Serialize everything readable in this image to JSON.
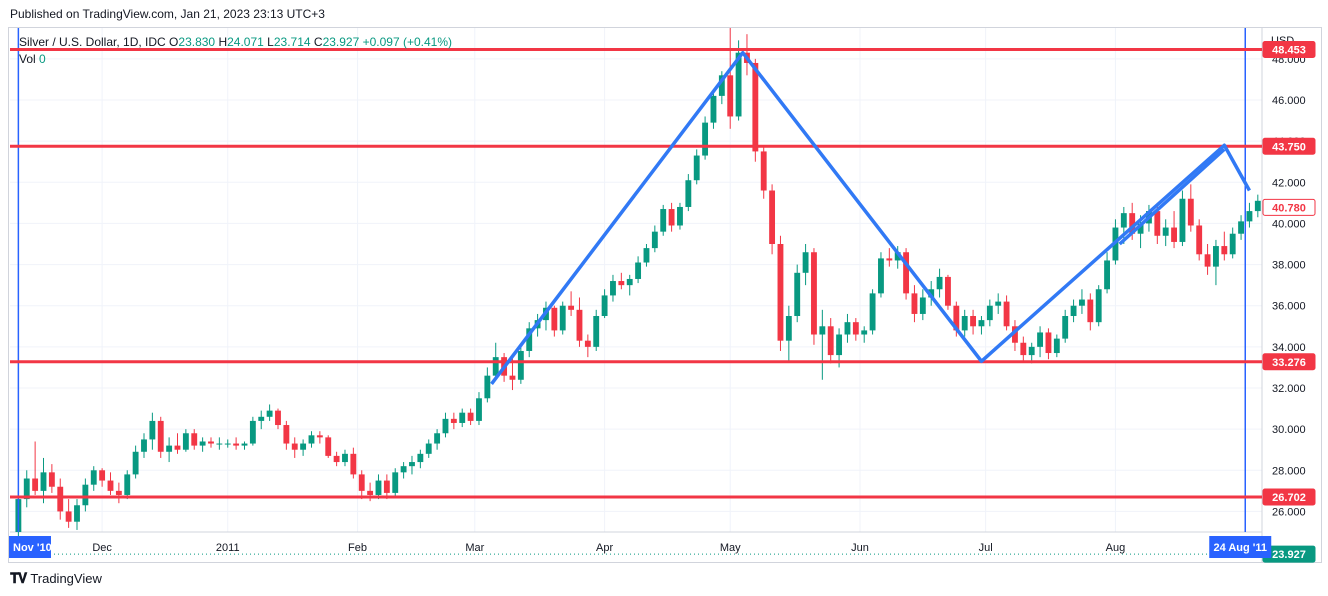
{
  "header": {
    "published": "Published on TradingView.com, Jan 21, 2023 23:13 UTC+3"
  },
  "legend": {
    "symbol": "Silver / U.S. Dollar, 1D, IDC",
    "o_label": "O",
    "o_value": "23.830",
    "h_label": "H",
    "h_value": "24.071",
    "l_label": "L",
    "l_value": "23.714",
    "c_label": "C",
    "c_value": "23.927",
    "change": "+0.097 (+0.41%)",
    "vol_label": "Vol",
    "vol_value": "0"
  },
  "footer": {
    "logo_text": "TradingView"
  },
  "colors": {
    "up": "#089981",
    "down": "#f23645",
    "hline": "#f23645",
    "pattern": "#3179f5",
    "vline": "#2962ff",
    "grid": "#f0f3fa",
    "axis_text": "#131722"
  },
  "chart_data": {
    "type": "candlestick",
    "currency_label": "USD",
    "y_axis": {
      "min": 25,
      "max": 49.5,
      "ticks": [
        "26.000",
        "28.000",
        "30.000",
        "32.000",
        "34.000",
        "36.000",
        "38.000",
        "40.000",
        "42.000",
        "44.000",
        "46.000",
        "48.000"
      ]
    },
    "x_axis": {
      "labels": [
        {
          "text": "Dec",
          "day": 20
        },
        {
          "text": "2011",
          "day": 50
        },
        {
          "text": "Feb",
          "day": 81
        },
        {
          "text": "Mar",
          "day": 109
        },
        {
          "text": "Apr",
          "day": 140
        },
        {
          "text": "May",
          "day": 170
        },
        {
          "text": "Jun",
          "day": 201
        },
        {
          "text": "Jul",
          "day": 231
        },
        {
          "text": "Aug",
          "day": 262
        }
      ],
      "range_days": [
        -2,
        297
      ],
      "range_start_label": "Nov '10",
      "range_end_label": "24 Aug '11",
      "range_start_day": 0,
      "range_end_day": 293
    },
    "horizontal_levels": [
      {
        "value": 48.453,
        "label": "48.453"
      },
      {
        "value": 43.75,
        "label": "43.750"
      },
      {
        "value": 33.276,
        "label": "33.276"
      },
      {
        "value": 26.702,
        "label": "26.702"
      }
    ],
    "current_price": {
      "value": 40.78,
      "label": "40.780"
    },
    "last_close": {
      "value": 23.927,
      "label": "23.927"
    },
    "pattern_line": [
      {
        "day": 113,
        "price": 32.2
      },
      {
        "day": 173,
        "price": 48.3
      },
      {
        "day": 230,
        "price": 33.3
      },
      {
        "day": 288,
        "price": 43.8
      },
      {
        "day": 294,
        "price": 41.6
      }
    ],
    "second_line": [
      {
        "day": 263,
        "price": 39.0
      },
      {
        "day": 288,
        "price": 43.6
      }
    ],
    "candles": [
      {
        "day": 0,
        "o": 25.0,
        "h": 27.0,
        "l": 24.6,
        "c": 26.6
      },
      {
        "day": 2,
        "o": 26.6,
        "h": 28.0,
        "l": 26.2,
        "c": 27.6
      },
      {
        "day": 4,
        "o": 27.6,
        "h": 29.4,
        "l": 26.8,
        "c": 27.0
      },
      {
        "day": 6,
        "o": 27.0,
        "h": 28.6,
        "l": 26.4,
        "c": 27.9
      },
      {
        "day": 8,
        "o": 27.9,
        "h": 28.3,
        "l": 26.9,
        "c": 27.2
      },
      {
        "day": 10,
        "o": 27.2,
        "h": 27.6,
        "l": 25.6,
        "c": 26.0
      },
      {
        "day": 12,
        "o": 26.0,
        "h": 26.6,
        "l": 25.2,
        "c": 25.5
      },
      {
        "day": 14,
        "o": 25.5,
        "h": 26.6,
        "l": 25.1,
        "c": 26.3
      },
      {
        "day": 16,
        "o": 26.3,
        "h": 27.6,
        "l": 26.0,
        "c": 27.3
      },
      {
        "day": 18,
        "o": 27.3,
        "h": 28.2,
        "l": 27.0,
        "c": 28.0
      },
      {
        "day": 20,
        "o": 28.0,
        "h": 28.1,
        "l": 27.2,
        "c": 27.5
      },
      {
        "day": 22,
        "o": 27.5,
        "h": 27.9,
        "l": 26.8,
        "c": 27.0
      },
      {
        "day": 24,
        "o": 27.0,
        "h": 27.4,
        "l": 26.4,
        "c": 26.8
      },
      {
        "day": 26,
        "o": 26.8,
        "h": 28.0,
        "l": 26.6,
        "c": 27.8
      },
      {
        "day": 28,
        "o": 27.8,
        "h": 29.2,
        "l": 27.6,
        "c": 28.9
      },
      {
        "day": 30,
        "o": 28.9,
        "h": 29.8,
        "l": 28.6,
        "c": 29.5
      },
      {
        "day": 32,
        "o": 29.5,
        "h": 30.8,
        "l": 29.0,
        "c": 30.4
      },
      {
        "day": 34,
        "o": 30.4,
        "h": 30.6,
        "l": 28.6,
        "c": 28.9
      },
      {
        "day": 36,
        "o": 28.9,
        "h": 29.6,
        "l": 28.4,
        "c": 29.2
      },
      {
        "day": 38,
        "o": 29.2,
        "h": 29.8,
        "l": 28.8,
        "c": 29.0
      },
      {
        "day": 40,
        "o": 29.0,
        "h": 30.0,
        "l": 28.9,
        "c": 29.8
      },
      {
        "day": 42,
        "o": 29.8,
        "h": 30.0,
        "l": 29.0,
        "c": 29.2
      },
      {
        "day": 44,
        "o": 29.2,
        "h": 29.6,
        "l": 28.9,
        "c": 29.4
      },
      {
        "day": 46,
        "o": 29.4,
        "h": 29.6,
        "l": 29.1,
        "c": 29.3
      },
      {
        "day": 48,
        "o": 29.3,
        "h": 29.6,
        "l": 29.0,
        "c": 29.3
      },
      {
        "day": 50,
        "o": 29.3,
        "h": 29.5,
        "l": 29.1,
        "c": 29.3
      },
      {
        "day": 52,
        "o": 29.3,
        "h": 29.6,
        "l": 29.0,
        "c": 29.2
      },
      {
        "day": 54,
        "o": 29.2,
        "h": 29.4,
        "l": 29.0,
        "c": 29.3
      },
      {
        "day": 56,
        "o": 29.3,
        "h": 30.6,
        "l": 29.2,
        "c": 30.4
      },
      {
        "day": 58,
        "o": 30.4,
        "h": 30.9,
        "l": 30.0,
        "c": 30.6
      },
      {
        "day": 60,
        "o": 30.6,
        "h": 31.2,
        "l": 30.4,
        "c": 30.9
      },
      {
        "day": 62,
        "o": 30.9,
        "h": 31.0,
        "l": 30.0,
        "c": 30.2
      },
      {
        "day": 64,
        "o": 30.2,
        "h": 30.4,
        "l": 29.0,
        "c": 29.3
      },
      {
        "day": 66,
        "o": 29.3,
        "h": 29.6,
        "l": 28.6,
        "c": 29.0
      },
      {
        "day": 68,
        "o": 29.0,
        "h": 29.5,
        "l": 28.7,
        "c": 29.3
      },
      {
        "day": 70,
        "o": 29.3,
        "h": 29.9,
        "l": 29.1,
        "c": 29.7
      },
      {
        "day": 72,
        "o": 29.7,
        "h": 29.9,
        "l": 29.3,
        "c": 29.6
      },
      {
        "day": 74,
        "o": 29.6,
        "h": 29.7,
        "l": 28.6,
        "c": 28.7
      },
      {
        "day": 76,
        "o": 28.7,
        "h": 28.9,
        "l": 28.2,
        "c": 28.4
      },
      {
        "day": 78,
        "o": 28.4,
        "h": 29.0,
        "l": 28.2,
        "c": 28.8
      },
      {
        "day": 80,
        "o": 28.8,
        "h": 29.1,
        "l": 27.6,
        "c": 27.8
      },
      {
        "day": 82,
        "o": 27.8,
        "h": 28.0,
        "l": 26.6,
        "c": 27.0
      },
      {
        "day": 84,
        "o": 27.0,
        "h": 27.4,
        "l": 26.5,
        "c": 26.8
      },
      {
        "day": 86,
        "o": 26.8,
        "h": 27.8,
        "l": 26.6,
        "c": 27.5
      },
      {
        "day": 88,
        "o": 27.5,
        "h": 27.8,
        "l": 26.6,
        "c": 26.9
      },
      {
        "day": 90,
        "o": 26.9,
        "h": 28.1,
        "l": 26.7,
        "c": 27.9
      },
      {
        "day": 92,
        "o": 27.9,
        "h": 28.4,
        "l": 27.6,
        "c": 28.2
      },
      {
        "day": 94,
        "o": 28.2,
        "h": 28.7,
        "l": 27.8,
        "c": 28.4
      },
      {
        "day": 96,
        "o": 28.4,
        "h": 29.0,
        "l": 28.1,
        "c": 28.8
      },
      {
        "day": 98,
        "o": 28.8,
        "h": 29.5,
        "l": 28.6,
        "c": 29.3
      },
      {
        "day": 100,
        "o": 29.3,
        "h": 30.0,
        "l": 29.0,
        "c": 29.8
      },
      {
        "day": 102,
        "o": 29.8,
        "h": 30.8,
        "l": 29.6,
        "c": 30.5
      },
      {
        "day": 104,
        "o": 30.5,
        "h": 30.8,
        "l": 30.0,
        "c": 30.3
      },
      {
        "day": 106,
        "o": 30.3,
        "h": 31.0,
        "l": 30.1,
        "c": 30.8
      },
      {
        "day": 108,
        "o": 30.8,
        "h": 31.0,
        "l": 30.2,
        "c": 30.4
      },
      {
        "day": 110,
        "o": 30.4,
        "h": 31.8,
        "l": 30.2,
        "c": 31.5
      },
      {
        "day": 112,
        "o": 31.5,
        "h": 33.0,
        "l": 31.3,
        "c": 32.6
      },
      {
        "day": 114,
        "o": 32.6,
        "h": 34.2,
        "l": 32.4,
        "c": 33.5
      },
      {
        "day": 116,
        "o": 33.5,
        "h": 33.7,
        "l": 32.3,
        "c": 32.6
      },
      {
        "day": 118,
        "o": 32.6,
        "h": 33.6,
        "l": 31.9,
        "c": 32.4
      },
      {
        "day": 120,
        "o": 32.4,
        "h": 34.0,
        "l": 32.2,
        "c": 33.8
      },
      {
        "day": 122,
        "o": 33.8,
        "h": 35.2,
        "l": 33.5,
        "c": 34.9
      },
      {
        "day": 124,
        "o": 34.9,
        "h": 35.6,
        "l": 34.5,
        "c": 35.3
      },
      {
        "day": 126,
        "o": 35.3,
        "h": 36.2,
        "l": 34.8,
        "c": 35.9
      },
      {
        "day": 128,
        "o": 35.9,
        "h": 36.0,
        "l": 34.5,
        "c": 34.8
      },
      {
        "day": 130,
        "o": 34.8,
        "h": 36.2,
        "l": 34.6,
        "c": 36.0
      },
      {
        "day": 132,
        "o": 36.0,
        "h": 36.7,
        "l": 35.5,
        "c": 35.8
      },
      {
        "day": 134,
        "o": 35.8,
        "h": 36.4,
        "l": 34.0,
        "c": 34.3
      },
      {
        "day": 136,
        "o": 34.3,
        "h": 34.6,
        "l": 33.5,
        "c": 34.0
      },
      {
        "day": 138,
        "o": 34.0,
        "h": 35.8,
        "l": 33.8,
        "c": 35.5
      },
      {
        "day": 140,
        "o": 35.5,
        "h": 36.8,
        "l": 35.4,
        "c": 36.5
      },
      {
        "day": 142,
        "o": 36.5,
        "h": 37.5,
        "l": 36.2,
        "c": 37.2
      },
      {
        "day": 144,
        "o": 37.2,
        "h": 37.6,
        "l": 36.8,
        "c": 37.0
      },
      {
        "day": 146,
        "o": 37.0,
        "h": 37.5,
        "l": 36.5,
        "c": 37.3
      },
      {
        "day": 148,
        "o": 37.3,
        "h": 38.4,
        "l": 37.1,
        "c": 38.1
      },
      {
        "day": 150,
        "o": 38.1,
        "h": 39.0,
        "l": 37.9,
        "c": 38.8
      },
      {
        "day": 152,
        "o": 38.8,
        "h": 39.9,
        "l": 38.6,
        "c": 39.6
      },
      {
        "day": 154,
        "o": 39.6,
        "h": 40.9,
        "l": 39.4,
        "c": 40.7
      },
      {
        "day": 156,
        "o": 40.7,
        "h": 41.0,
        "l": 39.6,
        "c": 39.9
      },
      {
        "day": 158,
        "o": 39.9,
        "h": 41.0,
        "l": 39.7,
        "c": 40.8
      },
      {
        "day": 160,
        "o": 40.8,
        "h": 42.4,
        "l": 40.6,
        "c": 42.1
      },
      {
        "day": 162,
        "o": 42.1,
        "h": 43.6,
        "l": 41.9,
        "c": 43.3
      },
      {
        "day": 164,
        "o": 43.3,
        "h": 45.2,
        "l": 43.1,
        "c": 44.9
      },
      {
        "day": 166,
        "o": 44.9,
        "h": 46.5,
        "l": 44.6,
        "c": 46.2
      },
      {
        "day": 168,
        "o": 46.2,
        "h": 47.4,
        "l": 45.8,
        "c": 47.2
      },
      {
        "day": 170,
        "o": 47.2,
        "h": 49.5,
        "l": 44.6,
        "c": 45.2
      },
      {
        "day": 172,
        "o": 45.2,
        "h": 48.9,
        "l": 45.0,
        "c": 48.3
      },
      {
        "day": 174,
        "o": 48.3,
        "h": 49.2,
        "l": 47.2,
        "c": 47.8
      },
      {
        "day": 176,
        "o": 47.8,
        "h": 48.0,
        "l": 43.0,
        "c": 43.5
      },
      {
        "day": 178,
        "o": 43.5,
        "h": 43.8,
        "l": 41.2,
        "c": 41.6
      },
      {
        "day": 180,
        "o": 41.6,
        "h": 41.9,
        "l": 38.5,
        "c": 39.0
      },
      {
        "day": 182,
        "o": 39.0,
        "h": 39.4,
        "l": 33.8,
        "c": 34.3
      },
      {
        "day": 184,
        "o": 34.3,
        "h": 36.0,
        "l": 33.3,
        "c": 35.5
      },
      {
        "day": 186,
        "o": 35.5,
        "h": 38.0,
        "l": 35.2,
        "c": 37.6
      },
      {
        "day": 188,
        "o": 37.6,
        "h": 39.0,
        "l": 37.0,
        "c": 38.6
      },
      {
        "day": 190,
        "o": 38.6,
        "h": 38.8,
        "l": 34.1,
        "c": 34.6
      },
      {
        "day": 192,
        "o": 34.6,
        "h": 35.8,
        "l": 32.4,
        "c": 35.0
      },
      {
        "day": 194,
        "o": 35.0,
        "h": 35.4,
        "l": 33.2,
        "c": 33.6
      },
      {
        "day": 196,
        "o": 33.6,
        "h": 34.9,
        "l": 33.0,
        "c": 34.6
      },
      {
        "day": 198,
        "o": 34.6,
        "h": 35.6,
        "l": 34.2,
        "c": 35.2
      },
      {
        "day": 200,
        "o": 35.2,
        "h": 35.4,
        "l": 34.3,
        "c": 34.6
      },
      {
        "day": 202,
        "o": 34.6,
        "h": 35.0,
        "l": 34.2,
        "c": 34.8
      },
      {
        "day": 204,
        "o": 34.8,
        "h": 36.8,
        "l": 34.6,
        "c": 36.6
      },
      {
        "day": 206,
        "o": 36.6,
        "h": 38.6,
        "l": 36.4,
        "c": 38.3
      },
      {
        "day": 208,
        "o": 38.3,
        "h": 38.8,
        "l": 37.9,
        "c": 38.2
      },
      {
        "day": 210,
        "o": 38.2,
        "h": 38.9,
        "l": 37.8,
        "c": 38.6
      },
      {
        "day": 212,
        "o": 38.6,
        "h": 38.8,
        "l": 36.3,
        "c": 36.6
      },
      {
        "day": 214,
        "o": 36.6,
        "h": 37.0,
        "l": 35.2,
        "c": 35.6
      },
      {
        "day": 216,
        "o": 35.6,
        "h": 36.8,
        "l": 35.3,
        "c": 36.4
      },
      {
        "day": 218,
        "o": 36.4,
        "h": 37.2,
        "l": 36.0,
        "c": 36.8
      },
      {
        "day": 220,
        "o": 36.8,
        "h": 37.8,
        "l": 36.4,
        "c": 37.4
      },
      {
        "day": 222,
        "o": 37.4,
        "h": 37.5,
        "l": 35.8,
        "c": 36.0
      },
      {
        "day": 224,
        "o": 36.0,
        "h": 36.2,
        "l": 34.5,
        "c": 34.8
      },
      {
        "day": 226,
        "o": 34.8,
        "h": 35.8,
        "l": 34.5,
        "c": 35.5
      },
      {
        "day": 228,
        "o": 35.5,
        "h": 35.8,
        "l": 34.6,
        "c": 35.0
      },
      {
        "day": 230,
        "o": 35.0,
        "h": 35.5,
        "l": 34.6,
        "c": 35.3
      },
      {
        "day": 232,
        "o": 35.3,
        "h": 36.3,
        "l": 35.0,
        "c": 36.0
      },
      {
        "day": 234,
        "o": 36.0,
        "h": 36.6,
        "l": 35.6,
        "c": 36.2
      },
      {
        "day": 236,
        "o": 36.2,
        "h": 36.5,
        "l": 34.8,
        "c": 35.0
      },
      {
        "day": 238,
        "o": 35.0,
        "h": 35.3,
        "l": 33.8,
        "c": 34.2
      },
      {
        "day": 240,
        "o": 34.2,
        "h": 34.5,
        "l": 33.3,
        "c": 33.6
      },
      {
        "day": 242,
        "o": 33.6,
        "h": 34.2,
        "l": 33.2,
        "c": 34.0
      },
      {
        "day": 244,
        "o": 34.0,
        "h": 35.0,
        "l": 33.5,
        "c": 34.7
      },
      {
        "day": 246,
        "o": 34.7,
        "h": 34.9,
        "l": 33.4,
        "c": 33.7
      },
      {
        "day": 248,
        "o": 33.7,
        "h": 34.6,
        "l": 33.5,
        "c": 34.4
      },
      {
        "day": 250,
        "o": 34.4,
        "h": 35.8,
        "l": 34.2,
        "c": 35.5
      },
      {
        "day": 252,
        "o": 35.5,
        "h": 36.3,
        "l": 35.2,
        "c": 36.0
      },
      {
        "day": 254,
        "o": 36.0,
        "h": 36.8,
        "l": 35.6,
        "c": 36.3
      },
      {
        "day": 256,
        "o": 36.3,
        "h": 36.6,
        "l": 34.8,
        "c": 35.2
      },
      {
        "day": 258,
        "o": 35.2,
        "h": 37.0,
        "l": 35.0,
        "c": 36.8
      },
      {
        "day": 260,
        "o": 36.8,
        "h": 38.6,
        "l": 36.6,
        "c": 38.2
      },
      {
        "day": 262,
        "o": 38.2,
        "h": 40.2,
        "l": 38.0,
        "c": 39.8
      },
      {
        "day": 264,
        "o": 39.8,
        "h": 40.8,
        "l": 39.0,
        "c": 40.5
      },
      {
        "day": 266,
        "o": 40.5,
        "h": 41.0,
        "l": 39.2,
        "c": 39.5
      },
      {
        "day": 268,
        "o": 39.5,
        "h": 40.4,
        "l": 38.8,
        "c": 40.0
      },
      {
        "day": 270,
        "o": 40.0,
        "h": 40.9,
        "l": 39.6,
        "c": 40.6
      },
      {
        "day": 272,
        "o": 40.6,
        "h": 41.0,
        "l": 39.0,
        "c": 39.4
      },
      {
        "day": 274,
        "o": 39.4,
        "h": 40.2,
        "l": 38.9,
        "c": 39.8
      },
      {
        "day": 276,
        "o": 39.8,
        "h": 40.6,
        "l": 38.8,
        "c": 39.1
      },
      {
        "day": 278,
        "o": 39.1,
        "h": 41.6,
        "l": 38.9,
        "c": 41.2
      },
      {
        "day": 280,
        "o": 41.2,
        "h": 41.9,
        "l": 39.6,
        "c": 39.9
      },
      {
        "day": 282,
        "o": 39.9,
        "h": 40.2,
        "l": 38.2,
        "c": 38.5
      },
      {
        "day": 284,
        "o": 38.5,
        "h": 39.0,
        "l": 37.5,
        "c": 37.9
      },
      {
        "day": 286,
        "o": 37.9,
        "h": 39.2,
        "l": 37.0,
        "c": 38.9
      },
      {
        "day": 288,
        "o": 38.9,
        "h": 39.6,
        "l": 38.2,
        "c": 38.5
      },
      {
        "day": 290,
        "o": 38.5,
        "h": 39.8,
        "l": 38.3,
        "c": 39.5
      },
      {
        "day": 292,
        "o": 39.5,
        "h": 40.4,
        "l": 39.2,
        "c": 40.1
      },
      {
        "day": 294,
        "o": 40.1,
        "h": 41.0,
        "l": 39.8,
        "c": 40.6
      },
      {
        "day": 296,
        "o": 40.6,
        "h": 41.4,
        "l": 40.3,
        "c": 41.1
      }
    ]
  }
}
